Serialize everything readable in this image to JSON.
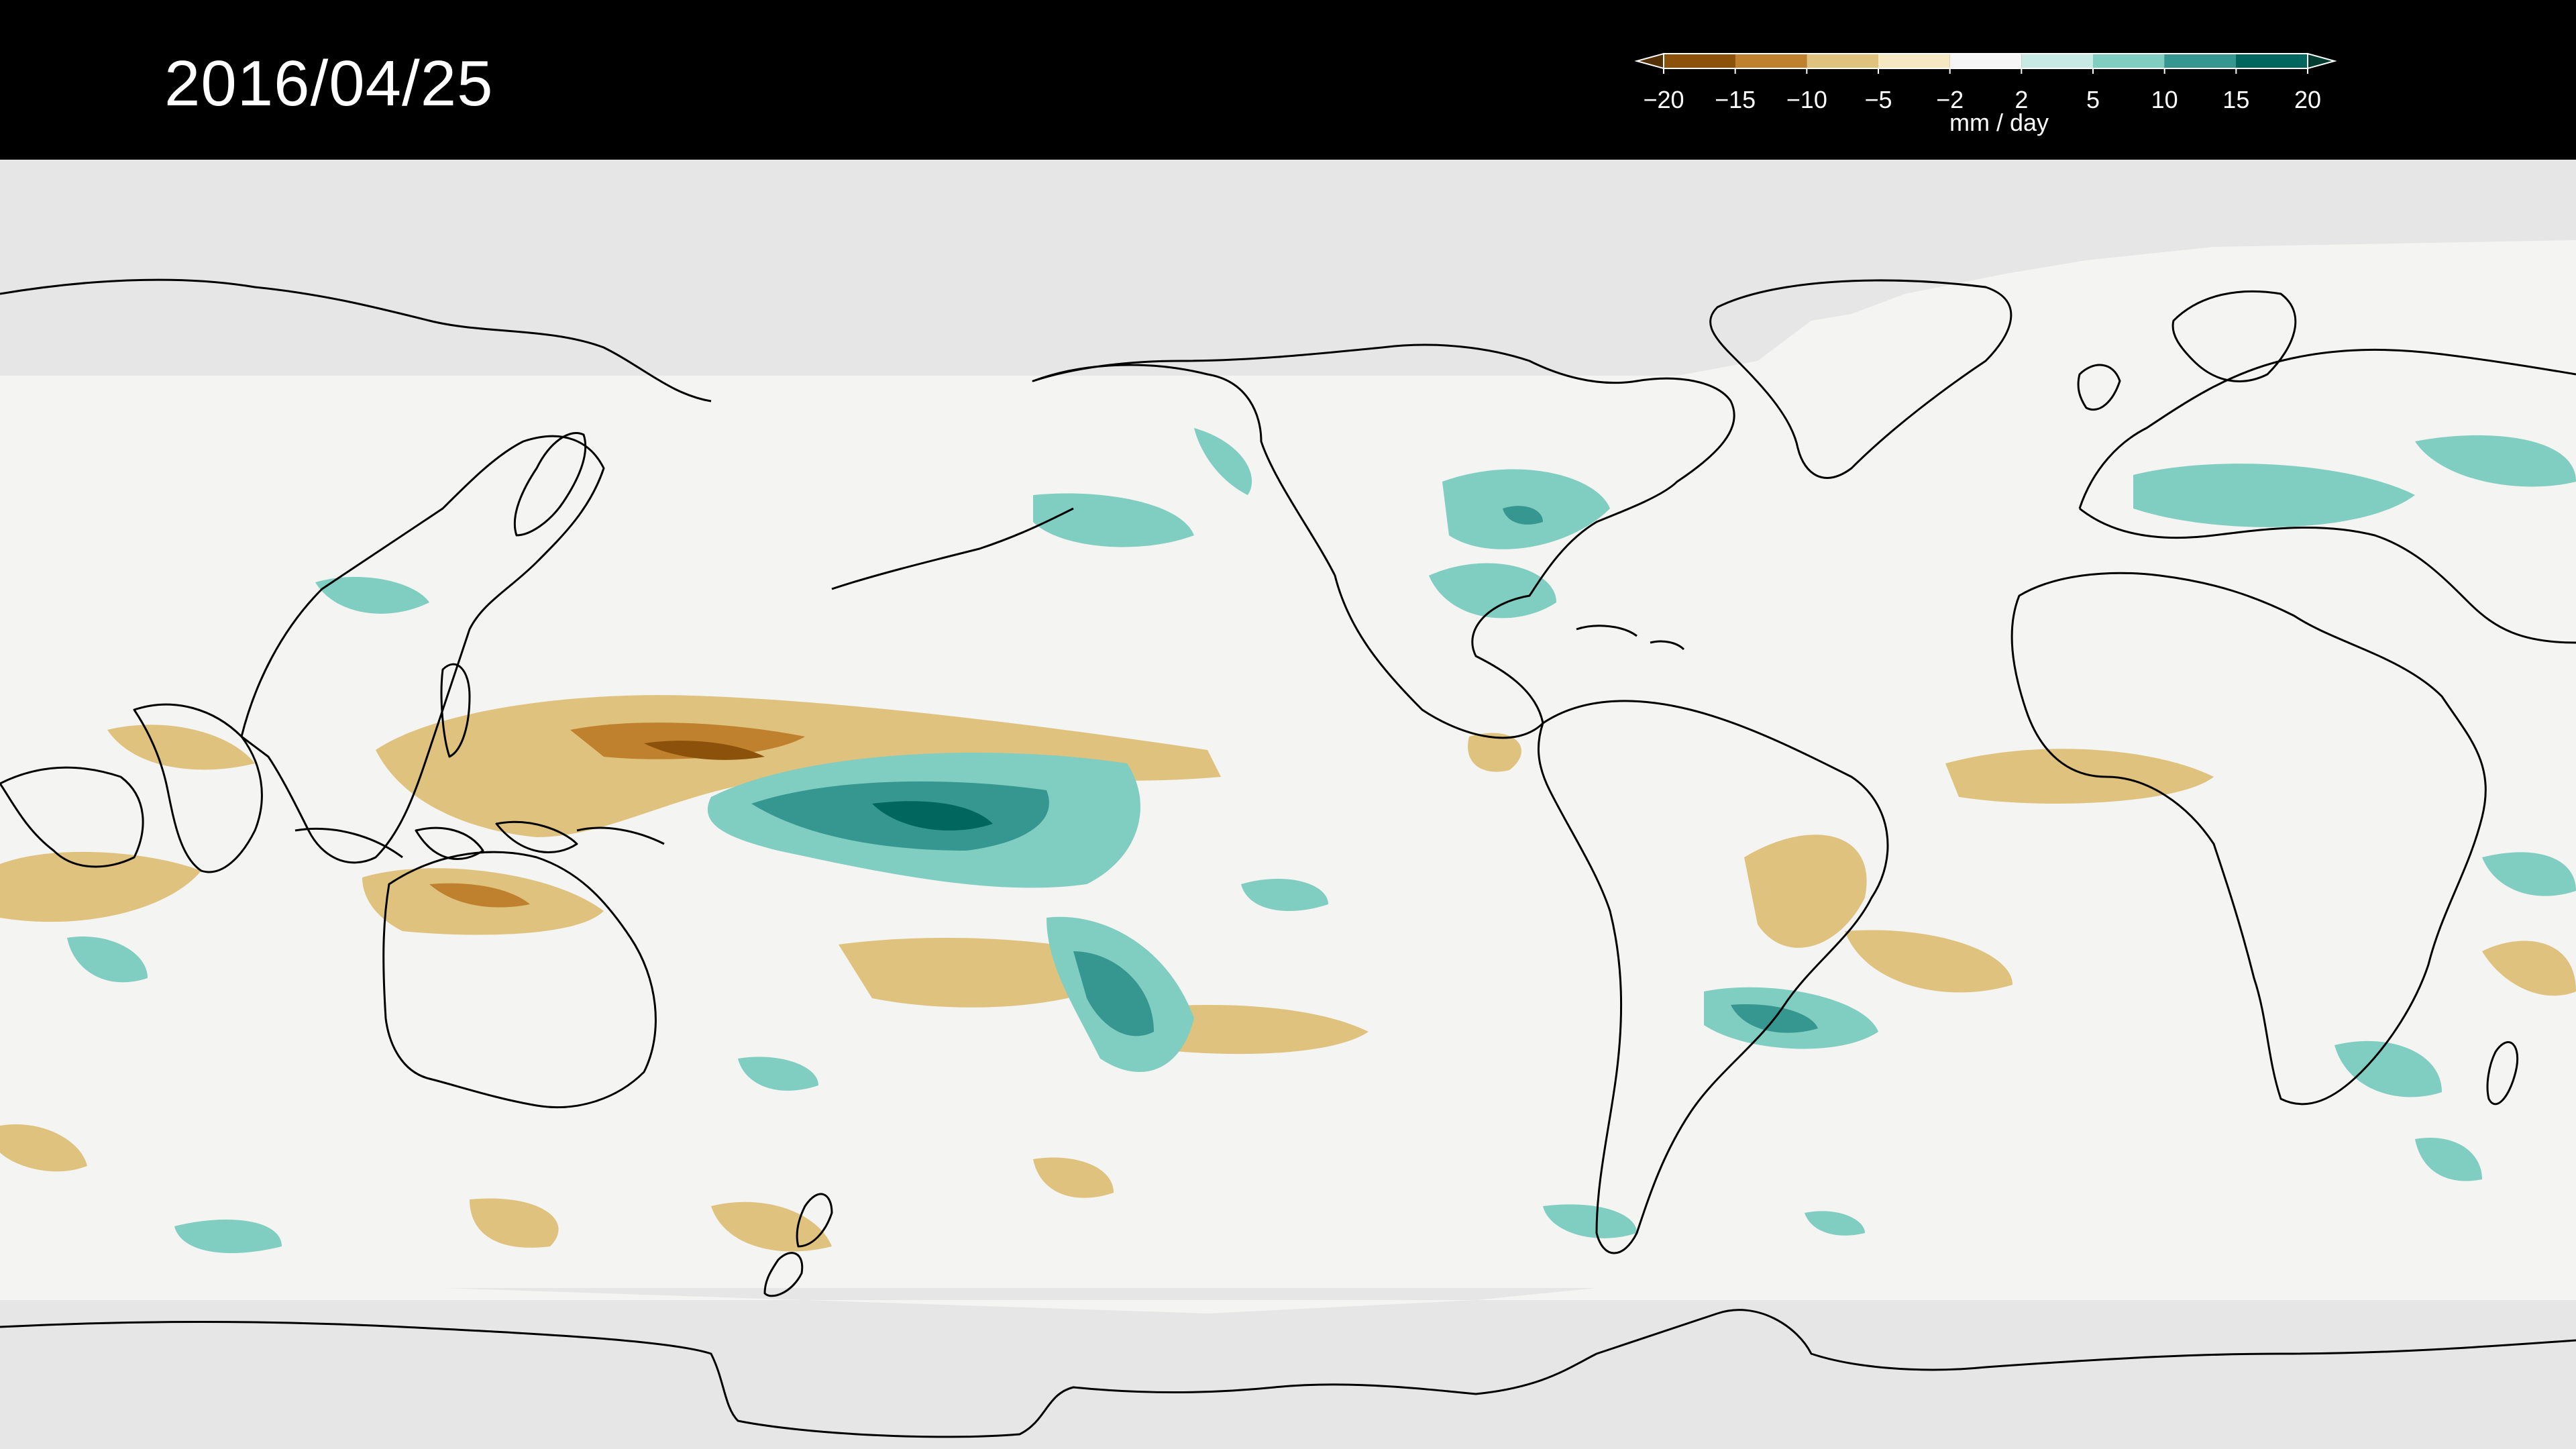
{
  "header": {
    "date": "2016/04/25"
  },
  "legend": {
    "units": "mm / day",
    "ticks": [
      "−20",
      "−15",
      "−10",
      "−5",
      "−2",
      "2",
      "5",
      "10",
      "15",
      "20"
    ],
    "colors": [
      "#543005",
      "#8c510a",
      "#bf812d",
      "#dfc27d",
      "#f6e8c3",
      "#f5f5f5",
      "#c7eae5",
      "#80cdc1",
      "#35978f",
      "#01665e",
      "#003c30"
    ]
  },
  "map": {
    "background_no_data": "#e6e6e6",
    "background_neutral": "#f4f4f2",
    "coastline_color": "#000000"
  }
}
